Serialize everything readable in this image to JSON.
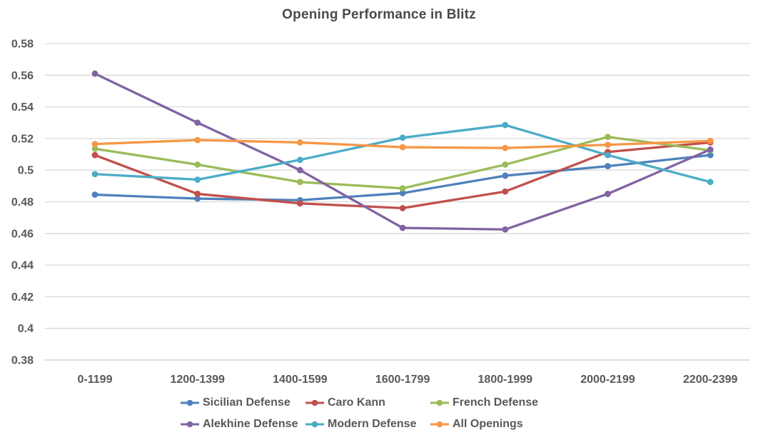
{
  "chart_data": {
    "type": "line",
    "title": "Opening Performance in Blitz",
    "xlabel": "",
    "ylabel": "",
    "categories": [
      "0-1199",
      "1200-1399",
      "1400-1599",
      "1600-1799",
      "1800-1999",
      "2000-2199",
      "2200-2399"
    ],
    "series": [
      {
        "name": "Sicilian Defense",
        "color": "#4F81BD",
        "values": [
          0.4845,
          0.482,
          0.481,
          0.4855,
          0.4965,
          0.5025,
          0.5095
        ]
      },
      {
        "name": "Caro Kann",
        "color": "#C0504D",
        "values": [
          0.5095,
          0.485,
          0.479,
          0.476,
          0.4865,
          0.5115,
          0.5175
        ]
      },
      {
        "name": "French Defense",
        "color": "#9BBB59",
        "values": [
          0.5135,
          0.5035,
          0.4925,
          0.4885,
          0.5035,
          0.521,
          0.5125
        ]
      },
      {
        "name": "Alekhine Defense",
        "color": "#8064A2",
        "values": [
          0.561,
          0.53,
          0.5,
          0.4635,
          0.4625,
          0.485,
          0.513
        ]
      },
      {
        "name": "Modern Defense",
        "color": "#4BACC6",
        "values": [
          0.4975,
          0.494,
          0.5065,
          0.5205,
          0.5285,
          0.5095,
          0.4925
        ]
      },
      {
        "name": "All Openings",
        "color": "#F79646",
        "values": [
          0.5165,
          0.519,
          0.5175,
          0.5145,
          0.514,
          0.516,
          0.5185
        ]
      }
    ],
    "ylim": [
      0.38,
      0.58
    ],
    "y_ticks": [
      "0.38",
      "0.4",
      "0.42",
      "0.44",
      "0.46",
      "0.48",
      "0.5",
      "0.52",
      "0.54",
      "0.56",
      "0.58"
    ],
    "grid": true,
    "legend_position": "bottom"
  },
  "colors": {
    "grid": "#D9D9D9",
    "axis_line": "#C6C6C6",
    "axis_text": "#595959",
    "title_text": "#4A4A4A",
    "background": "#FFFFFF"
  }
}
